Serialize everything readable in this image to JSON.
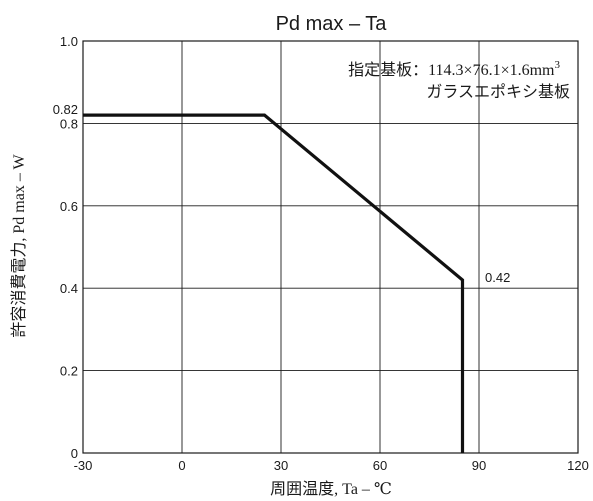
{
  "chart_data": {
    "type": "line",
    "title": "Pd max – Ta",
    "xlabel": "周囲温度, Ta – ℃",
    "ylabel": "許容消費電力, Pd max – W",
    "xlim": [
      -30,
      120
    ],
    "ylim": [
      0,
      1.0
    ],
    "x_ticks": [
      "-30",
      "0",
      "30",
      "60",
      "90",
      "120"
    ],
    "y_ticks": [
      "0",
      "0.2",
      "0.4",
      "0.6",
      "0.8",
      "1.0"
    ],
    "extra_y_tick": "0.82",
    "grid": true,
    "series": [
      {
        "x": [
          -30,
          25,
          85,
          85
        ],
        "y": [
          0.82,
          0.82,
          0.42,
          0
        ]
      }
    ],
    "annotations": {
      "board_line1": "指定基板：114.3×76.1×1.6mm",
      "board_line1_sup": "3",
      "board_line2": "ガラスエポキシ基板",
      "point_label": "0.42"
    }
  }
}
